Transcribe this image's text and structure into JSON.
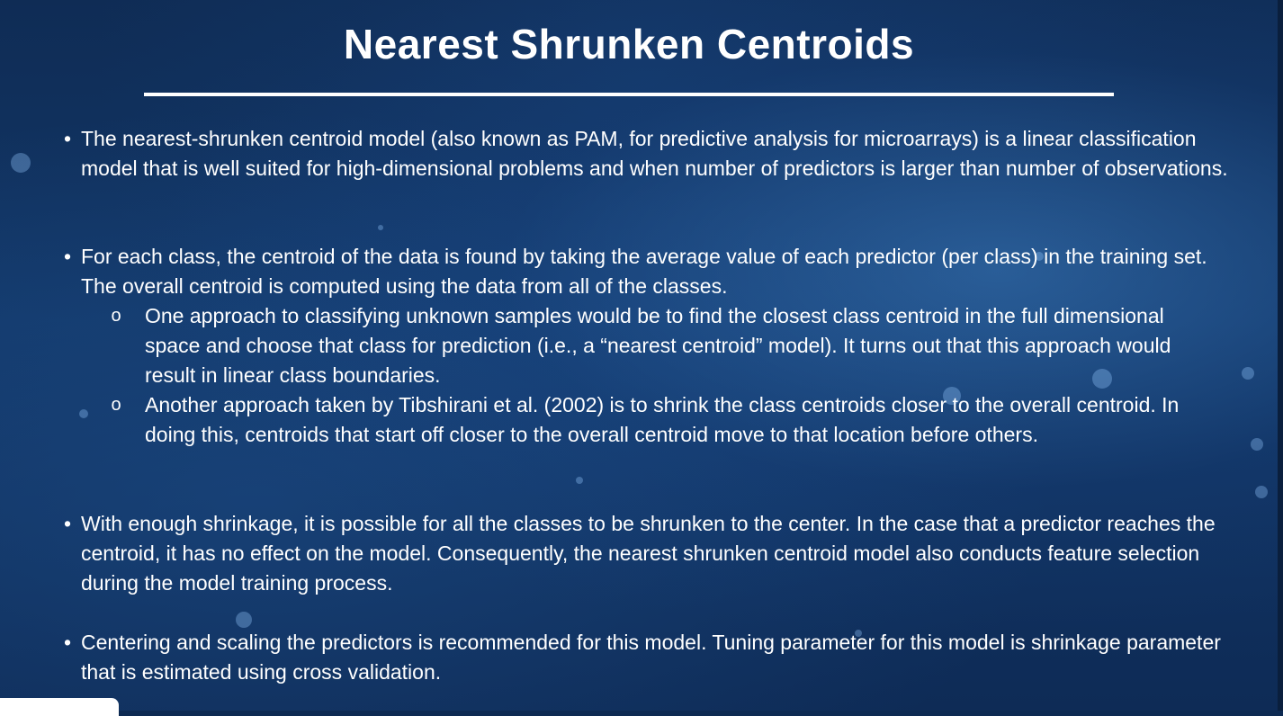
{
  "slide": {
    "title": "Nearest Shrunken Centroids",
    "bullets": [
      {
        "marker": "•",
        "text": "The nearest-shrunken centroid model (also known as PAM, for predictive analysis for microarrays) is a linear classification model that is well suited for high-dimensional problems and when number of predictors is larger than number of observations."
      },
      {
        "marker": "•",
        "text": "For each class, the centroid of the data is found by taking the average value of each predictor (per class) in the training set. The overall centroid is computed using the data from all of the classes.",
        "sub": [
          {
            "marker": "o",
            "text": "One approach to classifying unknown samples would be to find the closest class centroid in the full dimensional space and choose that class for prediction (i.e., a “nearest centroid” model). It turns out that this approach would result in linear class boundaries."
          },
          {
            "marker": "o",
            "text": "Another approach taken by Tibshirani et al. (2002) is to shrink the class centroids closer to the overall centroid. In doing this, centroids that start off closer to the overall centroid move to that location before others."
          }
        ]
      },
      {
        "marker": "•",
        "text": "With enough shrinkage, it is possible for all the classes to be shrunken to the center. In the case that a predictor reaches the centroid, it has no effect on the model. Consequently, the nearest shrunken centroid model also conducts feature selection during the model training process."
      },
      {
        "marker": "•",
        "text": "Centering and scaling the predictors is recommended for this model. Tuning parameter for this model is shrinkage parameter that is estimated using cross validation."
      }
    ]
  },
  "colors": {
    "background": "#123768",
    "text": "#ffffff"
  }
}
